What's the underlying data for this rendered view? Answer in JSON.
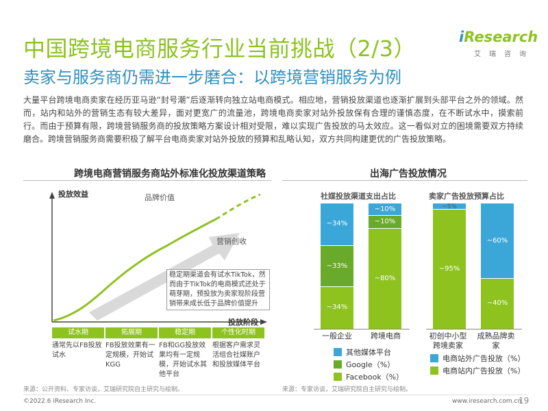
{
  "title": "中国跨境电商服务行业当前挑战（2/3）",
  "subtitle": "卖家与服务商仍需进一步磨合：以跨境营销服务为例",
  "logo": {
    "word_i": "i",
    "word_rest": "Research",
    "cn": "艾瑞咨询"
  },
  "intro": "大量平台跨境电商卖家在经历亚马逊“封号潮”后逐渐转向独立站电商模式。相应地，营销投放渠道也逐渐扩展到头部平台之外的领域。然而，站内和站外的营销生态有较大差异，面对更宽广的流量池，跨境电商卖家对站外投放保有合理的谨慎态度，在不断试水中，摸索前行。而由于预算有限，跨境营销服务商的投放策略方案设计相对受限，难以实现广告投放的马太效应。这一看似对立的困境需要双方持续磨合。跨境营销服务商需要积极了解平台电商卖家对站外投放的预算和乱略认知，双方共同构建更优的广告投放策略。",
  "left_section": {
    "title": "跨境电商营销服务商站外标准化投放渠道策略",
    "y_axis_label": "投放效益",
    "x_axis_label": "投放阶段",
    "curve_label_brand": "品牌价值",
    "curve_label_marketing": "营销创收",
    "note": "稳定期渠道会有试水TikTok，然而由于TikTok的电商模式还处于萌芽期，预投放为卖家现阶段营销带来成长低于品牌价值提升",
    "stages": [
      {
        "label": "试水期",
        "desc": "通常先以FB投放试水"
      },
      {
        "label": "拓展期",
        "desc": "FB投放效果有一定规模，开始试KGG"
      },
      {
        "label": "稳定期",
        "desc": "FB和GG投放效果均有一定规模，开始试水其他平台"
      },
      {
        "label": "个性化时期",
        "desc": "根据客户需求灵活组合社媒账户和投放媒体平台"
      }
    ],
    "source": "来源：公开资料、专家访谈，艾瑞研究院自主研究与绘制。"
  },
  "right_section": {
    "title": "出海广告投放情况",
    "source": "来源：专家访谈，艾瑞研究院自主研究与绘制。"
  },
  "chart_data": [
    {
      "type": "bar",
      "title": "社媒投放渠道支出占比",
      "categories": [
        "一般企业",
        "跨境电商"
      ],
      "series": [
        {
          "name": "Facebook（%）",
          "values": [
            34,
            80
          ],
          "labels": [
            "~34%",
            "~80%"
          ],
          "color": "#8dc21f"
        },
        {
          "name": "Google（%）",
          "values": [
            33,
            10
          ],
          "labels": [
            "~33%",
            "~10%"
          ],
          "color": "#6aaa2a"
        },
        {
          "name": "其他媒体平台",
          "values": [
            34,
            10
          ],
          "labels": [
            "~34%",
            "~10%"
          ],
          "color": "#3ba7d9"
        }
      ],
      "stacked": true
    },
    {
      "type": "bar",
      "title": "卖家广告投放预算占比",
      "categories": [
        "初创中小型跨境卖家",
        "成熟品牌卖家"
      ],
      "series": [
        {
          "name": "电商站内广告投放（%）",
          "values": [
            95,
            40
          ],
          "labels": [
            "~95%",
            "~40%"
          ],
          "color": "#8dc21f"
        },
        {
          "name": "电商站外广告投放（%）",
          "values": [
            5,
            60
          ],
          "labels": [
            "~5%",
            "~60%"
          ],
          "color": "#3ba7d9"
        }
      ],
      "stacked": true
    }
  ],
  "right_labels": {
    "c1_cat1": "一般企业",
    "c1_cat2": "跨境电商",
    "c2_cat1": "初创中小型跨境卖家",
    "c2_cat2": "成熟品牌卖家"
  },
  "legend1": [
    "其他媒体平台",
    "Google（%）",
    "Facebook（%）"
  ],
  "legend2": [
    "电商站外广告投放（%）",
    "电商站内广告投放（%）"
  ],
  "footer": {
    "copyright": "©2022.6 iResearch Inc.",
    "url": "www.iresearch.com.cn",
    "page": "19"
  }
}
